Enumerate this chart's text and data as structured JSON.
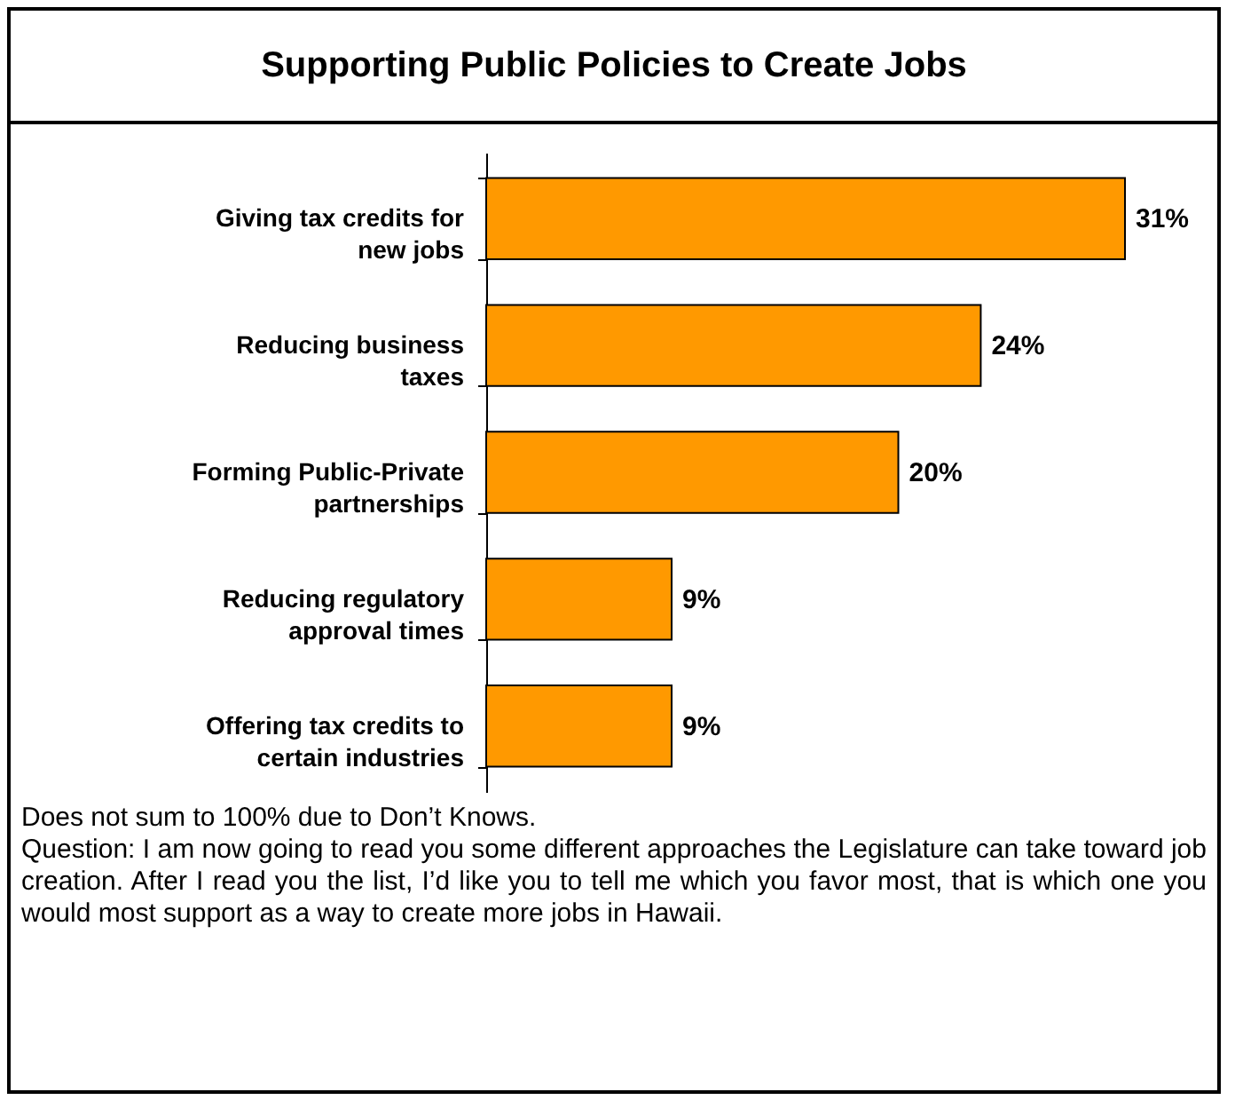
{
  "chart_data": {
    "type": "bar",
    "orientation": "horizontal",
    "title": "Supporting Public Policies to Create Jobs",
    "categories": [
      "Giving tax credits for new jobs",
      "Reducing business taxes",
      "Forming Public-Private partnerships",
      "Reducing regulatory approval times",
      "Offering tax credits to certain industries"
    ],
    "values": [
      31,
      24,
      20,
      9,
      9
    ],
    "value_labels": [
      "31%",
      "24%",
      "20%",
      "9%",
      "9%"
    ],
    "color": "#ff9900",
    "annotations": [
      "Does not sum to 100% due to Don’t Knows.",
      "Question: I am now going to read you some different approaches the Legislature can take toward job creation.  After I read you the list, I’d like you to tell me which you favor most, that is which one you would most support as a way to create more jobs in Hawaii."
    ]
  }
}
